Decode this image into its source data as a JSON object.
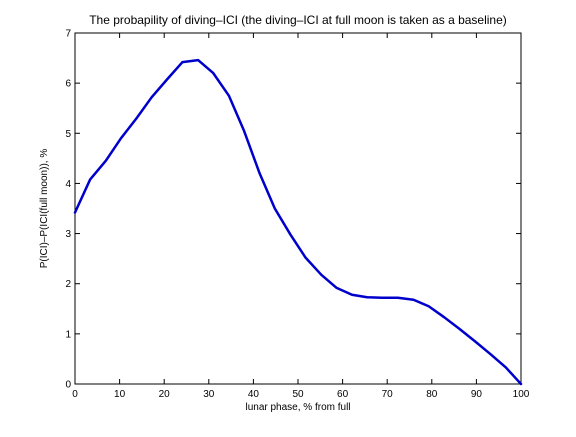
{
  "chart_data": {
    "type": "line",
    "title": "The probapility of diving–ICI (the diving–ICI at full moon is taken as a baseline)",
    "xlabel": "lunar phase, % from full",
    "ylabel": "P(ICI)–P(ICI(full moon)), %",
    "xlim": [
      0,
      100
    ],
    "ylim": [
      0,
      7
    ],
    "xticks": [
      0,
      10,
      20,
      30,
      40,
      50,
      60,
      70,
      80,
      90,
      100
    ],
    "yticks": [
      0,
      1,
      2,
      3,
      4,
      5,
      6,
      7
    ],
    "grid": false,
    "line_color": "#0000cc",
    "series": [
      {
        "x": [
          0,
          3.4,
          6.9,
          10.3,
          13.8,
          17.2,
          20.7,
          24.1,
          27.6,
          31.0,
          34.5,
          37.9,
          41.4,
          44.8,
          48.3,
          51.7,
          55.2,
          58.6,
          62.1,
          65.5,
          69.0,
          72.4,
          75.9,
          79.3,
          82.8,
          86.2,
          89.7,
          93.1,
          96.6,
          100
        ],
        "y": [
          3.42,
          4.08,
          4.45,
          4.9,
          5.3,
          5.72,
          6.08,
          6.42,
          6.46,
          6.2,
          5.75,
          5.05,
          4.2,
          3.5,
          2.98,
          2.52,
          2.18,
          1.92,
          1.78,
          1.73,
          1.72,
          1.72,
          1.68,
          1.55,
          1.33,
          1.1,
          0.85,
          0.6,
          0.33,
          0.0
        ]
      }
    ]
  }
}
